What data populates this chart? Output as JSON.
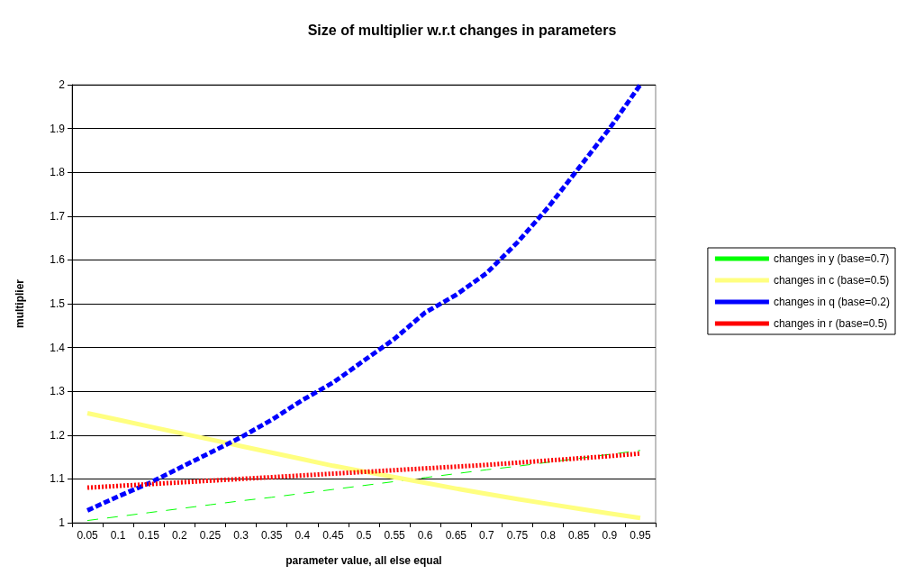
{
  "chart_data": {
    "type": "line",
    "title": "Size of multiplier w.r.t changes in parameters",
    "xlabel": "parameter value, all else equal",
    "ylabel": "multiplier",
    "categories": [
      "0.05",
      "0.1",
      "0.15",
      "0.2",
      "0.25",
      "0.3",
      "0.35",
      "0.4",
      "0.45",
      "0.5",
      "0.55",
      "0.6",
      "0.65",
      "0.7",
      "0.75",
      "0.8",
      "0.85",
      "0.9",
      "0.95"
    ],
    "series": [
      {
        "name": "changes in y (base=0.7)",
        "color": "#00ff00",
        "line_style": "dashed",
        "values": [
          1.005,
          1.014,
          1.023,
          1.032,
          1.041,
          1.05,
          1.058,
          1.067,
          1.076,
          1.085,
          1.094,
          1.103,
          1.112,
          1.121,
          1.129,
          1.138,
          1.147,
          1.156,
          1.165
        ]
      },
      {
        "name": "changes in c (base=0.5)",
        "color": "#ffff80",
        "line_style": "solid",
        "values": [
          1.25,
          1.235,
          1.22,
          1.205,
          1.19,
          1.175,
          1.16,
          1.145,
          1.13,
          1.117,
          1.104,
          1.091,
          1.078,
          1.066,
          1.054,
          1.043,
          1.032,
          1.021,
          1.011
        ]
      },
      {
        "name": "changes in q (base=0.2)",
        "color": "#0000ff",
        "line_style": "dashed",
        "values": [
          1.028,
          1.06,
          1.09,
          1.125,
          1.16,
          1.195,
          1.235,
          1.28,
          1.32,
          1.37,
          1.42,
          1.48,
          1.52,
          1.57,
          1.64,
          1.72,
          1.81,
          1.9,
          2.0
        ]
      },
      {
        "name": "changes in r (base=0.5)",
        "color": "#ff0000",
        "line_style": "dotted",
        "values": [
          1.08,
          1.084,
          1.088,
          1.092,
          1.096,
          1.1,
          1.104,
          1.108,
          1.112,
          1.116,
          1.12,
          1.124,
          1.128,
          1.132,
          1.137,
          1.142,
          1.147,
          1.152,
          1.158
        ]
      }
    ],
    "ylim": [
      1,
      2
    ],
    "yticks": [
      1,
      1.1,
      1.2,
      1.3,
      1.4,
      1.5,
      1.6,
      1.7,
      1.8,
      1.9,
      2
    ],
    "grid": "y",
    "legend": "right",
    "marker": "none"
  }
}
